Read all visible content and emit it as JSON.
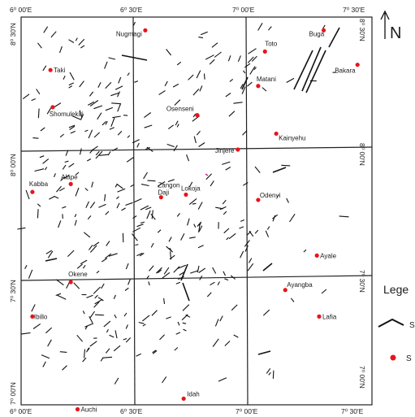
{
  "map": {
    "north_label": "N",
    "grid": {
      "top_ticks": [
        "6⁰ 00'E",
        "6⁰ 30'E",
        "7⁰ 00'E",
        "7⁰ 30'E"
      ],
      "bottom_ticks": [
        "6⁰ 00'E",
        "6⁰ 30'E",
        "7⁰ 00'E",
        "7⁰ 30'E"
      ],
      "left_ticks": [
        "8⁰ 30'N",
        "8⁰ 00'N",
        "7⁰ 30'N",
        "7⁰ 00'N"
      ],
      "right_ticks": [
        "8⁰ 30'N",
        "8⁰ 00'N",
        "7⁰ 30'N",
        "7⁰ 00'N"
      ]
    },
    "towns": [
      {
        "name": "Nugmagi",
        "lon": 6.55,
        "lat": 8.5
      },
      {
        "name": "Toto",
        "lon": 7.08,
        "lat": 8.42
      },
      {
        "name": "Buga",
        "lon": 7.34,
        "lat": 8.5
      },
      {
        "name": "Bakara",
        "lon": 7.49,
        "lat": 8.37
      },
      {
        "name": "Taki",
        "lon": 6.13,
        "lat": 8.35
      },
      {
        "name": "Matani",
        "lon": 7.05,
        "lat": 8.29
      },
      {
        "name": "Shomulekiri",
        "lon": 6.14,
        "lat": 8.21
      },
      {
        "name": "Osenseni",
        "lon": 6.78,
        "lat": 8.18
      },
      {
        "name": "Kainyehu",
        "lon": 7.13,
        "lat": 8.11
      },
      {
        "name": "Jinjere",
        "lon": 6.96,
        "lat": 8.05
      },
      {
        "name": "Alape",
        "lon": 6.22,
        "lat": 7.92
      },
      {
        "name": "Kabba",
        "lon": 6.05,
        "lat": 7.89
      },
      {
        "name": "Zangon Daji",
        "lon": 6.62,
        "lat": 7.87
      },
      {
        "name": "Lokoja",
        "lon": 6.73,
        "lat": 7.88
      },
      {
        "name": "Odenyi",
        "lon": 7.05,
        "lat": 7.86
      },
      {
        "name": "Ayale",
        "lon": 7.31,
        "lat": 7.65
      },
      {
        "name": "Okene",
        "lon": 6.22,
        "lat": 7.55
      },
      {
        "name": "Ayangba",
        "lon": 7.17,
        "lat": 7.52
      },
      {
        "name": "Ibillo",
        "lon": 6.05,
        "lat": 7.42
      },
      {
        "name": "Lafia",
        "lon": 7.32,
        "lat": 7.42
      },
      {
        "name": "Idah",
        "lon": 6.72,
        "lat": 7.11
      },
      {
        "name": "Auchi",
        "lon": 6.25,
        "lat": 7.07
      }
    ],
    "legend": {
      "title": "Lege",
      "items": [
        {
          "symbol": "lineament-line",
          "label": "S"
        },
        {
          "symbol": "town-dot",
          "label": "S"
        }
      ]
    },
    "colors": {
      "town": "#e8141c",
      "grid": "#222222",
      "lineament": "#111111",
      "pink_mark": "#c0308a"
    }
  }
}
